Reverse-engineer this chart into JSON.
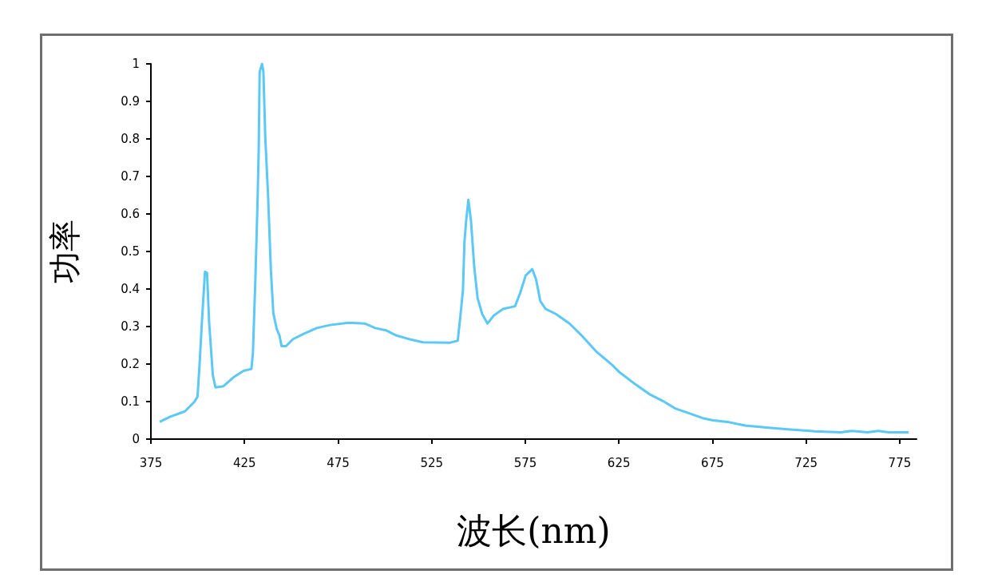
{
  "chart_data": {
    "type": "line",
    "xlabel": "波长(nm)",
    "ylabel": "功率",
    "xlim": [
      375,
      784
    ],
    "xticks": [
      375,
      425,
      475,
      525,
      575,
      625,
      675,
      725,
      775
    ],
    "ylim": [
      0,
      1
    ],
    "yticks": [
      0,
      0.1,
      0.2,
      0.3,
      0.4,
      0.5,
      0.6,
      0.7,
      0.8,
      0.9,
      1
    ],
    "grid": false,
    "marker": "none",
    "line_style": "solid",
    "series": [
      {
        "color": "#5bc8f5",
        "x": [
          379.7,
          385.4,
          393.2,
          398.2,
          399.9,
          401,
          402.2,
          403.9,
          405,
          406.1,
          408.1,
          409.5,
          413.8,
          419.5,
          424.5,
          428.7,
          429.5,
          430.9,
          432,
          432.6,
          433.1,
          434.4,
          435.1,
          436.1,
          437.6,
          439.1,
          440.4,
          442.2,
          443.7,
          444.8,
          447.2,
          450.8,
          456.4,
          463.6,
          470.7,
          480.6,
          489.2,
          494.8,
          500.5,
          506.2,
          513.3,
          520.4,
          534.6,
          538.9,
          540.3,
          541.7,
          542.5,
          543.4,
          544.6,
          546,
          547.7,
          549.5,
          552,
          554.8,
          558.1,
          563.1,
          569.5,
          572.3,
          575.2,
          578.7,
          580.8,
          583,
          585.8,
          591.5,
          598.6,
          605.7,
          612.8,
          621.3,
          625.6,
          634.1,
          641.2,
          648.3,
          655.4,
          662.5,
          669.7,
          675.3,
          683.9,
          692.4,
          703.8,
          715.2,
          729.4,
          743.6,
          749.3,
          757.8,
          763.5,
          769.2,
          779.8
        ],
        "values": [
          0.046,
          0.06,
          0.074,
          0.099,
          0.113,
          0.198,
          0.308,
          0.446,
          0.443,
          0.312,
          0.17,
          0.138,
          0.141,
          0.166,
          0.182,
          0.187,
          0.23,
          0.439,
          0.638,
          0.773,
          0.979,
          1.0,
          0.979,
          0.805,
          0.649,
          0.45,
          0.336,
          0.294,
          0.276,
          0.248,
          0.248,
          0.266,
          0.28,
          0.296,
          0.304,
          0.31,
          0.308,
          0.296,
          0.29,
          0.276,
          0.266,
          0.258,
          0.257,
          0.262,
          0.326,
          0.397,
          0.525,
          0.581,
          0.638,
          0.581,
          0.461,
          0.376,
          0.333,
          0.308,
          0.329,
          0.347,
          0.354,
          0.39,
          0.436,
          0.453,
          0.425,
          0.368,
          0.347,
          0.333,
          0.308,
          0.273,
          0.234,
          0.198,
          0.177,
          0.145,
          0.12,
          0.102,
          0.081,
          0.069,
          0.056,
          0.05,
          0.045,
          0.036,
          0.031,
          0.026,
          0.021,
          0.018,
          0.022,
          0.018,
          0.022,
          0.018,
          0.018
        ]
      }
    ]
  }
}
